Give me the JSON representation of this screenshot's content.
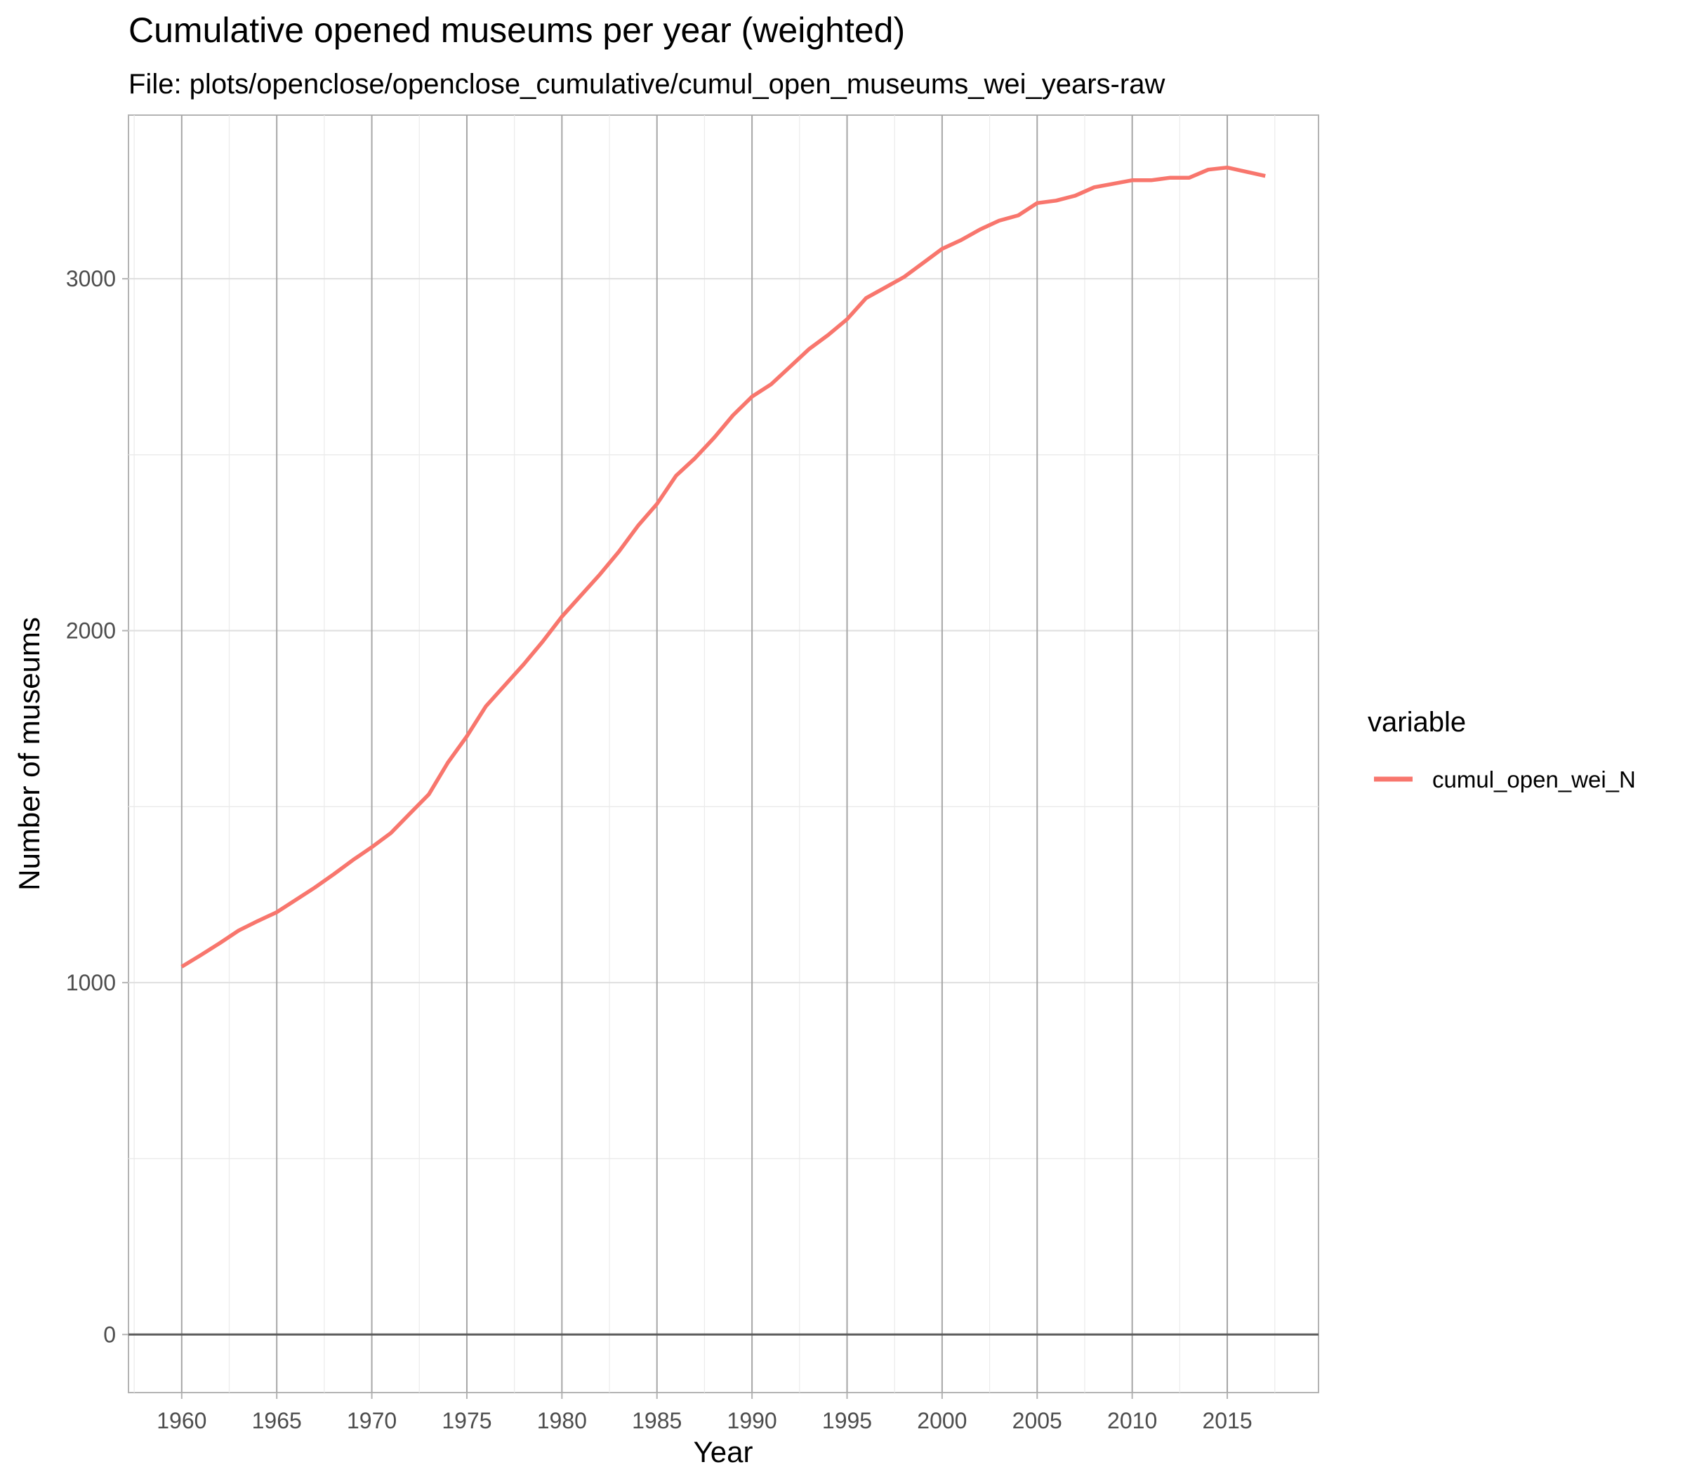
{
  "chart_data": {
    "type": "line",
    "title": "Cumulative opened museums per year (weighted)",
    "subtitle": "File: plots/openclose/openclose_cumulative/cumul_open_museums_wei_years-raw",
    "xlabel": "Year",
    "ylabel": "Number of museums",
    "xlim": [
      1957.2,
      2019.8
    ],
    "ylim": [
      -165,
      3465
    ],
    "x_ticks": [
      1960,
      1965,
      1970,
      1975,
      1980,
      1985,
      1990,
      1995,
      2000,
      2005,
      2010,
      2015
    ],
    "y_ticks": [
      0,
      1000,
      2000,
      3000
    ],
    "y_minor_ticks": [
      500,
      1500,
      2500
    ],
    "x_minor_ticks": [
      1957.5,
      1962.5,
      1967.5,
      1972.5,
      1977.5,
      1982.5,
      1987.5,
      1992.5,
      1997.5,
      2002.5,
      2007.5,
      2012.5,
      2017.5
    ],
    "grid": true,
    "hline": 0,
    "legend": {
      "title": "variable",
      "position": "right"
    },
    "series": [
      {
        "name": "cumul_open_wei_N",
        "color": "#f8766d",
        "x": [
          1960,
          1961,
          1962,
          1963,
          1964,
          1965,
          1966,
          1967,
          1968,
          1969,
          1970,
          1971,
          1972,
          1973,
          1974,
          1975,
          1976,
          1977,
          1978,
          1979,
          1980,
          1981,
          1982,
          1983,
          1984,
          1985,
          1986,
          1987,
          1988,
          1989,
          1990,
          1991,
          1992,
          1993,
          1994,
          1995,
          1996,
          1997,
          1998,
          1999,
          2000,
          2001,
          2002,
          2003,
          2004,
          2005,
          2006,
          2007,
          2008,
          2009,
          2010,
          2011,
          2012,
          2013,
          2014,
          2015,
          2016,
          2017
        ],
        "values": [
          1045,
          1078,
          1112,
          1148,
          1175,
          1200,
          1235,
          1270,
          1308,
          1348,
          1385,
          1425,
          1480,
          1535,
          1625,
          1700,
          1785,
          1845,
          1905,
          1970,
          2040,
          2100,
          2160,
          2225,
          2298,
          2360,
          2440,
          2490,
          2548,
          2612,
          2665,
          2700,
          2750,
          2800,
          2840,
          2885,
          2945,
          2975,
          3005,
          3045,
          3085,
          3110,
          3140,
          3165,
          3180,
          3215,
          3222,
          3236,
          3260,
          3270,
          3280,
          3280,
          3287,
          3287,
          3310,
          3316,
          3304,
          3292
        ]
      }
    ]
  }
}
